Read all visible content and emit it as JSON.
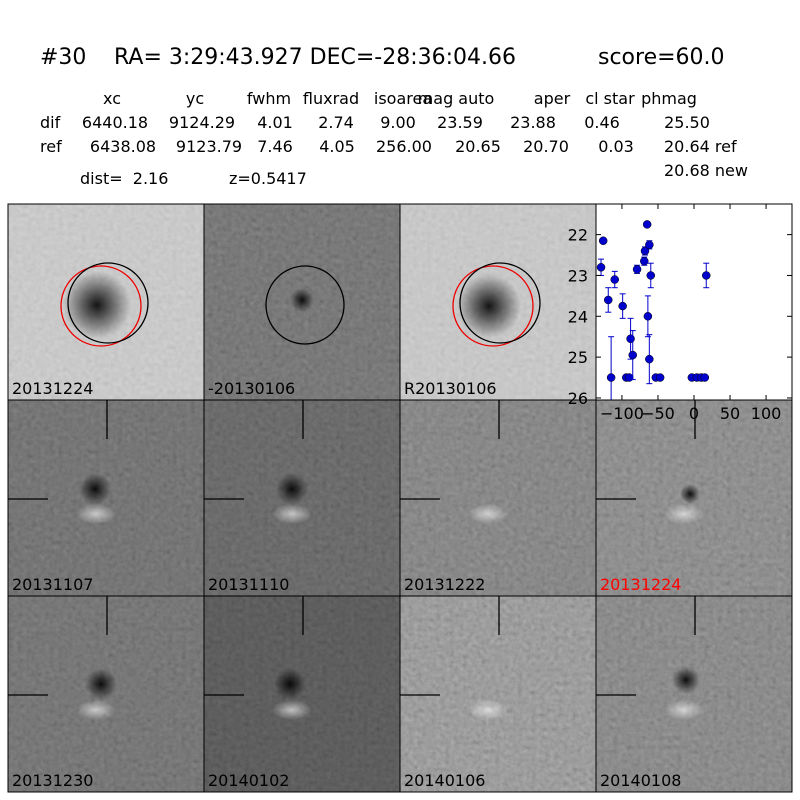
{
  "header": {
    "id": "#30",
    "coords": "RA= 3:29:43.927 DEC=-28:36:04.66",
    "score": "score=60.0"
  },
  "table": {
    "columns": [
      "xc",
      "yc",
      "fwhm",
      "fluxrad",
      "isoarea",
      "mag auto",
      "aper",
      "cl star",
      "phmag"
    ],
    "rows": [
      [
        "dif",
        "6440.18",
        "9124.29",
        "4.01",
        "2.74",
        "9.00",
        "23.59",
        "23.88",
        "0.46",
        "25.50"
      ],
      [
        "ref",
        "6438.08",
        "9123.79",
        "7.46",
        "4.05",
        "256.00",
        "20.65",
        "20.70",
        "0.03",
        "20.64 ref"
      ]
    ],
    "extra": "20.68 new"
  },
  "info": {
    "dist": "dist=  2.16",
    "z": "z=0.5417"
  },
  "panels": [
    "20131224",
    "-20130106",
    "R20130106",
    "20131107",
    "20131110",
    "20131222",
    "20131224",
    "20131230",
    "20140102",
    "20140106",
    "20140108"
  ],
  "chart_data": {
    "type": "scatter",
    "color": "#0000cc",
    "x": [
      -129,
      -126,
      -119,
      -115,
      -110,
      -99,
      -94,
      -90,
      -88,
      -85,
      -79,
      -69,
      -68,
      -65,
      -62,
      -64,
      -62,
      -60,
      -53,
      -47,
      -3,
      4,
      10,
      15,
      17
    ],
    "values": [
      22.8,
      22.15,
      23.6,
      25.5,
      23.1,
      23.75,
      25.5,
      25.5,
      24.55,
      24.95,
      22.85,
      22.65,
      22.4,
      21.75,
      22.25,
      24.0,
      25.05,
      23.0,
      25.5,
      25.5,
      25.5,
      25.5,
      25.5,
      25.5,
      23.0
    ],
    "errors": [
      0.2,
      0.05,
      0.3,
      1.0,
      0.2,
      0.3,
      0.0,
      0.0,
      0.5,
      0.6,
      0.1,
      0.1,
      0.1,
      0.05,
      0.1,
      0.5,
      0.6,
      0.3,
      0.0,
      0.0,
      0.0,
      0.0,
      0.0,
      0.0,
      0.3
    ],
    "xlim": [
      -136,
      136
    ],
    "ylim": [
      26.05,
      21.25
    ],
    "xticks": [
      {
        "value": -100,
        "label": "−100"
      },
      {
        "value": -50,
        "label": "−50"
      },
      0,
      50,
      100
    ],
    "yticks": [
      22,
      23,
      24,
      25,
      26
    ]
  }
}
